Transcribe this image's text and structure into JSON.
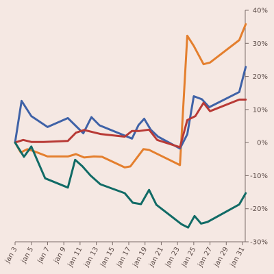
{
  "chart_data": {
    "type": "line",
    "title": "",
    "xlabel": "",
    "ylabel": "",
    "ylim": [
      -30,
      40
    ],
    "yticks": [
      40,
      30,
      20,
      10,
      0,
      -10,
      -20,
      -30
    ],
    "ytick_labels": [
      "40%",
      "30%",
      "20%",
      "10%",
      "0%",
      "-10%",
      "-20%",
      "-30%"
    ],
    "ytick_side": "right",
    "grid": false,
    "x_day_range": [
      3,
      31
    ],
    "x_tick_days": [
      3,
      5,
      7,
      9,
      11,
      13,
      15,
      17,
      19,
      21,
      23,
      25,
      27,
      29,
      31
    ],
    "x_tick_labels": [
      "jan 3",
      "jan 5",
      "jan 7",
      "jan 9",
      "jan 11",
      "jan 13",
      "jan 15",
      "jan 17",
      "jan 19",
      "jan 21",
      "jan 23",
      "jan 25",
      "jan 27",
      "jan 29",
      "jan 31"
    ],
    "series": [
      {
        "color": "#e47f2e",
        "x": [
          3,
          3.7,
          4.5,
          5.2,
          7,
          9.5,
          10.5,
          11.5,
          12.7,
          13.7,
          16.5,
          17.2,
          18.8,
          19.5,
          23.3,
          24.2,
          25,
          26.2,
          27,
          30.6,
          31.4
        ],
        "values": [
          0,
          -3,
          -2,
          -2.5,
          -4.2,
          -4.2,
          -3.5,
          -4.5,
          -4.2,
          -4.3,
          -7.5,
          -7.2,
          -2,
          -2.2,
          -6.8,
          32.3,
          29.2,
          23.7,
          24.2,
          31,
          35.8
        ]
      },
      {
        "color": "#3f62a7",
        "x": [
          3,
          3.8,
          5,
          7,
          9.5,
          10.5,
          11.4,
          12.4,
          13.4,
          17.4,
          18.2,
          18.9,
          19.7,
          20.6,
          23.3,
          24.2,
          25,
          26,
          26.9,
          30.6,
          31.4
        ],
        "values": [
          0,
          12.6,
          8,
          4.7,
          7.4,
          5,
          2.8,
          7.7,
          5.2,
          1.2,
          5.3,
          7.2,
          3.9,
          1.8,
          -1.8,
          2.5,
          14,
          13.1,
          10.7,
          15.3,
          22.9
        ]
      },
      {
        "color": "#b83a36",
        "x": [
          3,
          4,
          5,
          6.5,
          9.5,
          10.5,
          11.5,
          13.5,
          16.5,
          17.4,
          18.3,
          19.5,
          20.5,
          23.3,
          24.2,
          25.2,
          26.2,
          27,
          30.6,
          31.4
        ],
        "values": [
          0,
          0.8,
          0.2,
          0.2,
          0.5,
          3,
          3.8,
          2.6,
          1.8,
          3.5,
          3.5,
          3.9,
          0.8,
          -1.4,
          6.8,
          8,
          12,
          9.5,
          13,
          13
        ]
      },
      {
        "color": "#116b66",
        "x": [
          3,
          4.1,
          5,
          6.7,
          9.5,
          10.4,
          11.3,
          12.3,
          13.5,
          16.5,
          17.5,
          18.5,
          19.5,
          20.4,
          23.5,
          24.3,
          25.1,
          25.9,
          26.7,
          30.6,
          31.4
        ],
        "values": [
          0,
          -4.3,
          -1.2,
          -10.8,
          -13.6,
          -5.2,
          -7.2,
          -10,
          -12.6,
          -15.3,
          -18.2,
          -18.6,
          -14.3,
          -18.8,
          -24.7,
          -25.7,
          -22.2,
          -24.5,
          -24,
          -18.7,
          -15.3
        ]
      }
    ]
  }
}
